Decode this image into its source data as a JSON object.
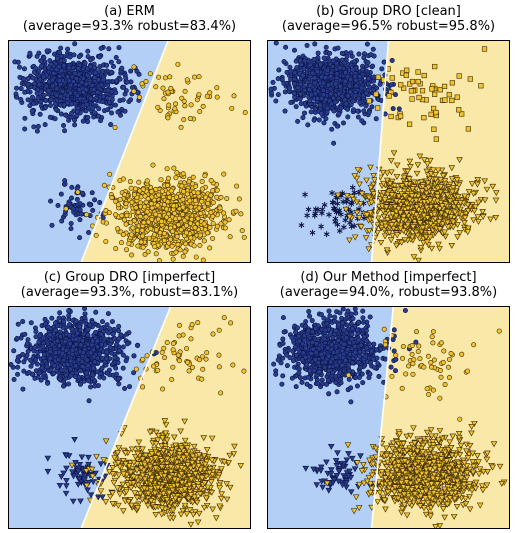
{
  "colors": {
    "region_blue": "#b3cff5",
    "region_yellow": "#f9e8a8",
    "boundary": "#ffffff",
    "navy_fill": "#283c8c",
    "navy_edge": "#0c1446",
    "yellow_fill": "#f1c232",
    "yellow_edge": "#3a2a00",
    "axes_frame": "#000000"
  },
  "panels": [
    {
      "title": "(a) ERM",
      "subtitle": "(average=93.3% robust=83.4%)",
      "boundary": [
        [
          0.3,
          0.0
        ],
        [
          0.66,
          1.0
        ]
      ],
      "markers_low": "circle",
      "markers_high": "circle"
    },
    {
      "title": "(b) Group DRO [clean]",
      "subtitle": "(average=96.5% robust=95.8%)",
      "boundary": [
        [
          0.43,
          0.0
        ],
        [
          0.5,
          1.0
        ]
      ],
      "markers_low": "star",
      "markers_high": "square"
    },
    {
      "title": "(c) Group DRO [imperfect]",
      "subtitle": "(average=93.3%, robust=83.1%)",
      "boundary": [
        [
          0.3,
          0.0
        ],
        [
          0.67,
          1.0
        ]
      ],
      "markers_low": "triangle",
      "markers_high": "circle"
    },
    {
      "title": "(d) Our Method [imperfect]",
      "subtitle": "(average=94.0%, robust=93.8%)",
      "boundary": [
        [
          0.43,
          0.0
        ],
        [
          0.52,
          1.0
        ]
      ],
      "markers_low": "triangle",
      "markers_high": "circle"
    }
  ],
  "chart_data": [
    {
      "type": "scatter",
      "title": "(a) ERM",
      "subtitle": "(average=93.3% robust=83.4%)",
      "grid": false,
      "decision_boundary": {
        "x_at_bottom": 0.3,
        "x_at_top": 0.66
      },
      "series": [
        {
          "shape": "circle",
          "color": "#283c8c",
          "center": [
            0.27,
            0.8
          ],
          "spread": [
            0.1,
            0.07
          ],
          "count": 900
        },
        {
          "shape": "circle",
          "color": "#283c8c",
          "center": [
            0.28,
            0.25
          ],
          "spread": [
            0.05,
            0.05
          ],
          "count": 60
        },
        {
          "shape": "circle",
          "color": "#f1c232",
          "center": [
            0.7,
            0.75
          ],
          "spread": [
            0.1,
            0.08
          ],
          "count": 60
        },
        {
          "shape": "circle",
          "color": "#f1c232",
          "center": [
            0.66,
            0.22
          ],
          "spread": [
            0.11,
            0.08
          ],
          "count": 900
        }
      ]
    },
    {
      "type": "scatter",
      "title": "(b) Group DRO [clean]",
      "subtitle": "(average=96.5% robust=95.8%)",
      "grid": false,
      "decision_boundary": {
        "x_at_bottom": 0.43,
        "x_at_top": 0.5
      },
      "series": [
        {
          "shape": "circle",
          "color": "#283c8c",
          "center": [
            0.27,
            0.8
          ],
          "spread": [
            0.1,
            0.07
          ],
          "count": 900
        },
        {
          "shape": "star",
          "color": "#283c8c",
          "center": [
            0.3,
            0.25
          ],
          "spread": [
            0.06,
            0.05
          ],
          "count": 60
        },
        {
          "shape": "square",
          "color": "#f1c232",
          "center": [
            0.62,
            0.77
          ],
          "spread": [
            0.1,
            0.09
          ],
          "count": 60
        },
        {
          "shape": "triangle",
          "color": "#f1c232",
          "center": [
            0.62,
            0.25
          ],
          "spread": [
            0.11,
            0.08
          ],
          "count": 900
        }
      ]
    },
    {
      "type": "scatter",
      "title": "(c) Group DRO [imperfect]",
      "subtitle": "(average=93.3%, robust=83.1%)",
      "grid": false,
      "decision_boundary": {
        "x_at_bottom": 0.3,
        "x_at_top": 0.67
      },
      "series": [
        {
          "shape": "circle",
          "color": "#283c8c",
          "center": [
            0.27,
            0.8
          ],
          "spread": [
            0.1,
            0.07
          ],
          "count": 900
        },
        {
          "shape": "triangle",
          "color": "#283c8c",
          "center": [
            0.3,
            0.25
          ],
          "spread": [
            0.06,
            0.05
          ],
          "count": 60
        },
        {
          "shape": "circle",
          "color": "#f1c232",
          "center": [
            0.72,
            0.77
          ],
          "spread": [
            0.1,
            0.09
          ],
          "count": 60
        },
        {
          "shape": "triangle",
          "color": "#f1c232",
          "center": [
            0.66,
            0.24
          ],
          "spread": [
            0.11,
            0.08
          ],
          "count": 900
        }
      ]
    },
    {
      "type": "scatter",
      "title": "(d) Our Method [imperfect]",
      "subtitle": "(average=94.0%, robust=93.8%)",
      "grid": false,
      "decision_boundary": {
        "x_at_bottom": 0.43,
        "x_at_top": 0.52
      },
      "series": [
        {
          "shape": "circle",
          "color": "#283c8c",
          "center": [
            0.27,
            0.8
          ],
          "spread": [
            0.1,
            0.07
          ],
          "count": 900
        },
        {
          "shape": "triangle",
          "color": "#283c8c",
          "center": [
            0.3,
            0.25
          ],
          "spread": [
            0.06,
            0.05
          ],
          "count": 60
        },
        {
          "shape": "circle",
          "color": "#f1c232",
          "center": [
            0.66,
            0.76
          ],
          "spread": [
            0.1,
            0.09
          ],
          "count": 60
        },
        {
          "shape": "triangle",
          "color": "#f1c232",
          "center": [
            0.64,
            0.25
          ],
          "spread": [
            0.11,
            0.08
          ],
          "count": 900
        }
      ]
    }
  ]
}
